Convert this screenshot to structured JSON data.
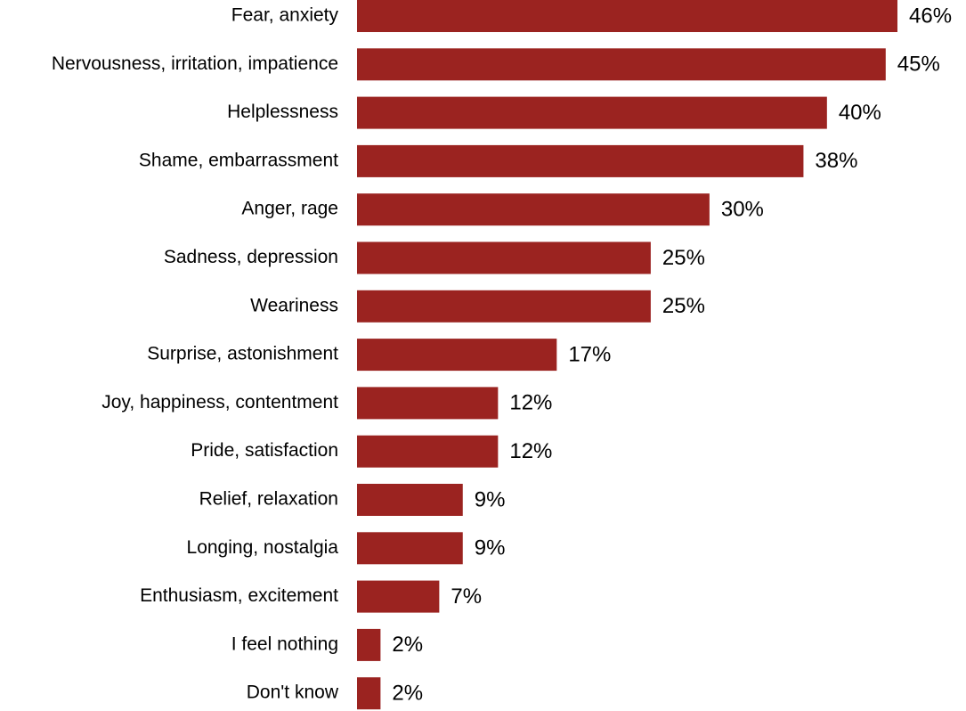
{
  "chart_data": {
    "type": "bar",
    "orientation": "horizontal",
    "color": "#9b2320",
    "categories": [
      "Fear, anxiety",
      "Nervousness, irritation, impatience",
      "Helplessness",
      "Shame, embarrassment",
      "Anger, rage",
      "Sadness, depression",
      "Weariness",
      "Surprise, astonishment",
      "Joy, happiness, contentment",
      "Pride, satisfaction",
      "Relief, relaxation",
      "Longing, nostalgia",
      "Enthusiasm, excitement",
      "I feel nothing",
      "Don't know"
    ],
    "values": [
      46,
      45,
      40,
      38,
      30,
      25,
      25,
      17,
      12,
      12,
      9,
      9,
      7,
      2,
      2
    ],
    "value_labels": [
      "46%",
      "45%",
      "40%",
      "38%",
      "30%",
      "25%",
      "25%",
      "17%",
      "12%",
      "12%",
      "9%",
      "9%",
      "7%",
      "2%",
      "2%"
    ]
  }
}
